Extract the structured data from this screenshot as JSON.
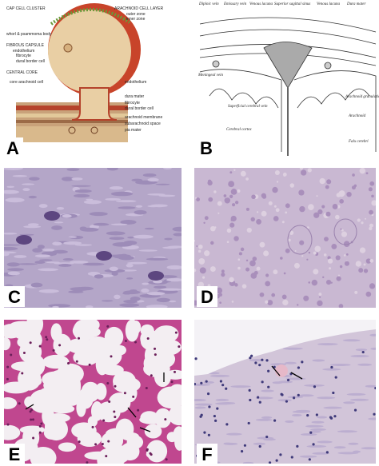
{
  "panels": [
    {
      "letter": "A",
      "labels": [
        "CAP CELL CLUSTER",
        "ARACHNOID CELL LAYER",
        "outer zone",
        "inner zone",
        "whorl & psammoma body",
        "FIBROUS CAPSULE",
        "endothelium",
        "fibrocyte",
        "dural border cell",
        "CENTRAL CORE",
        "core arachnoid cell",
        "endothelium",
        "dura mater",
        "fibrocyte",
        "dural border cell",
        "arachnoid membrane",
        "subarachnoid space",
        "pia mater"
      ]
    },
    {
      "letter": "B",
      "labels": [
        "Diploic vein",
        "Emissary vein",
        "Venous lacuna",
        "Superior sagittal sinus",
        "Venous lacuna",
        "Dura mater",
        "Meningeal vein",
        "Arachnoid granulations",
        "Superficial cerebral vein",
        "Arachnoid",
        "Cerebral cortex",
        "Falx cerebri"
      ]
    },
    {
      "letter": "C",
      "labels": []
    },
    {
      "letter": "D",
      "labels": []
    },
    {
      "letter": "E",
      "labels": []
    },
    {
      "letter": "F",
      "labels": []
    }
  ]
}
